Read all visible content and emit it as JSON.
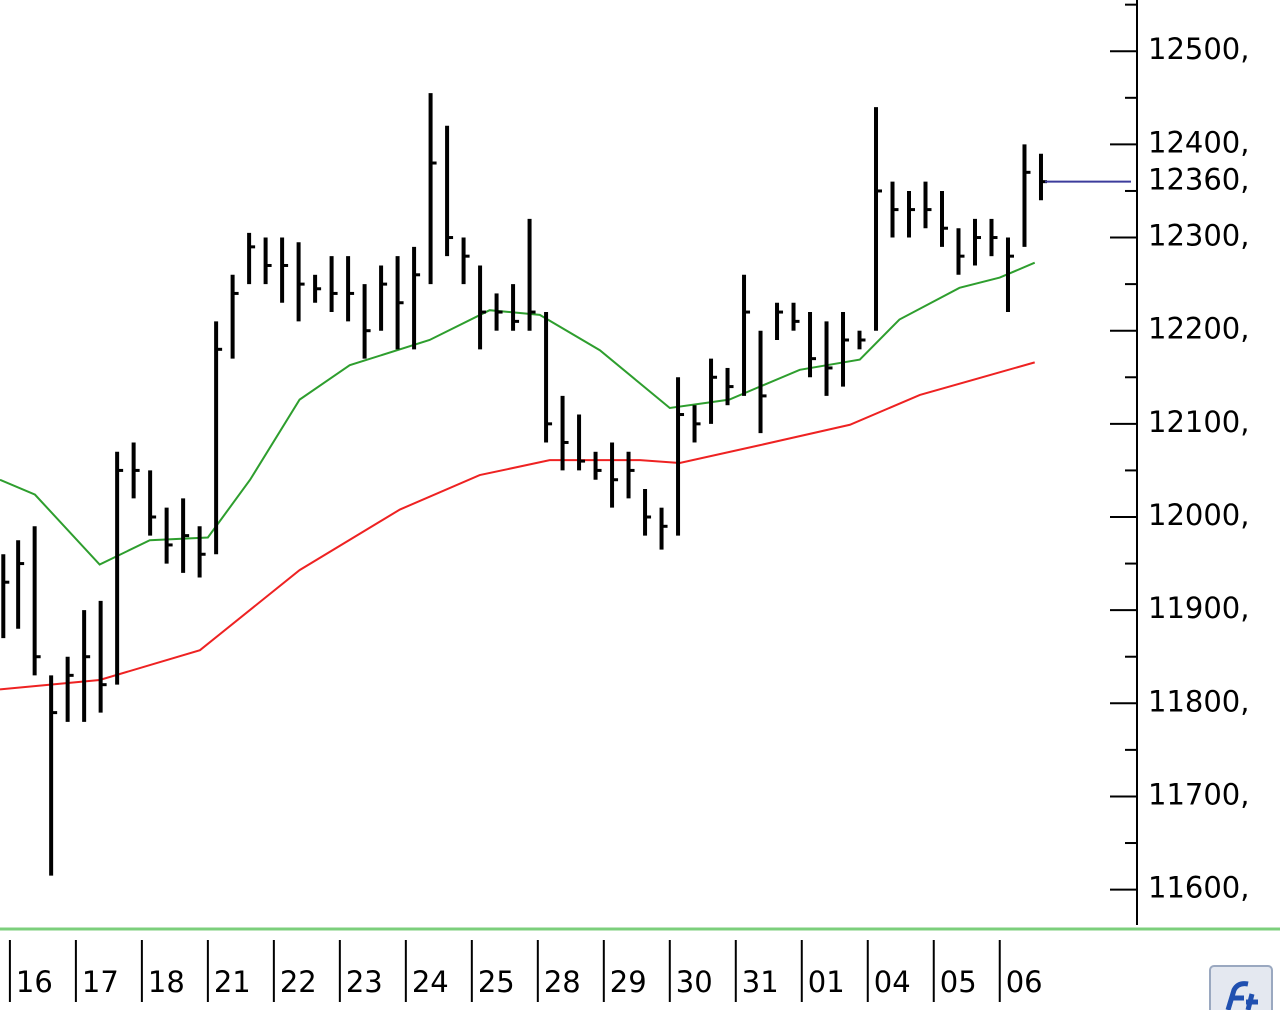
{
  "chart_data": {
    "type": "ohlc",
    "categories": [
      "16",
      "17",
      "18",
      "21",
      "22",
      "23",
      "24",
      "25",
      "28",
      "29",
      "30",
      "31",
      "01",
      "04",
      "05",
      "06"
    ],
    "xlim": [
      -0.15,
      17.08
    ],
    "ylim": [
      11562,
      12555
    ],
    "yticks": [
      {
        "value": 11600,
        "label": "11600,"
      },
      {
        "value": 11700,
        "label": "11700,"
      },
      {
        "value": 11800,
        "label": "11800,"
      },
      {
        "value": 11900,
        "label": "11900,"
      },
      {
        "value": 12000,
        "label": "12000,"
      },
      {
        "value": 12100,
        "label": "12100,"
      },
      {
        "value": 12200,
        "label": "12200,"
      },
      {
        "value": 12300,
        "label": "12300,"
      },
      {
        "value": 12400,
        "label": "12400,"
      },
      {
        "value": 12500,
        "label": "12500,"
      }
    ],
    "minor_yticks": [
      11650,
      11750,
      11850,
      11950,
      12050,
      12150,
      12250,
      12350,
      12450,
      12550
    ],
    "last_price": {
      "value": 12360,
      "label": "12360,",
      "color": "#3c3c9c"
    },
    "bar_color": "#000000",
    "bars": {
      "x": [
        -0.1,
        0.125,
        0.375,
        0.625,
        0.875,
        1.125,
        1.375,
        1.625,
        1.875,
        2.125,
        2.375,
        2.625,
        2.875,
        3.125,
        3.375,
        3.625,
        3.875,
        4.125,
        4.375,
        4.625,
        4.875,
        5.125,
        5.375,
        5.625,
        5.875,
        6.125,
        6.375,
        6.625,
        6.875,
        7.125,
        7.375,
        7.625,
        7.875,
        8.125,
        8.375,
        8.625,
        8.875,
        9.125,
        9.375,
        9.625,
        9.875,
        10.125,
        10.375,
        10.625,
        10.875,
        11.125,
        11.375,
        11.625,
        11.875,
        12.125,
        12.375,
        12.625,
        12.875,
        13.125,
        13.375,
        13.625,
        13.875,
        14.125,
        14.375,
        14.625,
        14.875,
        15.125,
        15.375,
        15.625
      ],
      "high": [
        11960,
        11975,
        11990,
        11830,
        11850,
        11900,
        11910,
        12070,
        12080,
        12050,
        12010,
        12020,
        11990,
        12210,
        12260,
        12305,
        12300,
        12300,
        12295,
        12260,
        12280,
        12280,
        12250,
        12270,
        12280,
        12290,
        12455,
        12420,
        12300,
        12270,
        12240,
        12250,
        12320,
        12220,
        12130,
        12110,
        12070,
        12080,
        12070,
        12030,
        12010,
        12150,
        12120,
        12170,
        12160,
        12260,
        12200,
        12230,
        12230,
        12220,
        12210,
        12220,
        12200,
        12440,
        12360,
        12350,
        12360,
        12350,
        12310,
        12320,
        12320,
        12300,
        12400,
        12390
      ],
      "low": [
        11870,
        11880,
        11830,
        11615,
        11780,
        11780,
        11790,
        11820,
        12020,
        11980,
        11950,
        11940,
        11935,
        11960,
        12170,
        12250,
        12250,
        12230,
        12210,
        12230,
        12220,
        12210,
        12170,
        12200,
        12180,
        12180,
        12250,
        12280,
        12250,
        12180,
        12200,
        12200,
        12200,
        12080,
        12050,
        12050,
        12040,
        12010,
        12020,
        11980,
        11965,
        11980,
        12080,
        12100,
        12120,
        12130,
        12090,
        12190,
        12200,
        12150,
        12130,
        12140,
        12180,
        12200,
        12300,
        12300,
        12310,
        12290,
        12260,
        12270,
        12280,
        12220,
        12290,
        12340
      ],
      "close": [
        11930,
        11950,
        11850,
        11790,
        11830,
        11850,
        11820,
        12050,
        12050,
        12000,
        11970,
        11980,
        11960,
        12180,
        12240,
        12290,
        12270,
        12270,
        12250,
        12245,
        12240,
        12240,
        12200,
        12250,
        12230,
        12260,
        12380,
        12300,
        12280,
        12220,
        12220,
        12210,
        12220,
        12100,
        12080,
        12060,
        12050,
        12040,
        12050,
        12000,
        11990,
        12110,
        12100,
        12150,
        12140,
        12220,
        12130,
        12220,
        12210,
        12170,
        12160,
        12190,
        12190,
        12350,
        12330,
        12330,
        12330,
        12310,
        12280,
        12300,
        12300,
        12280,
        12370,
        12360
      ]
    },
    "series": [
      {
        "color": "#2e9e2e",
        "x": [
          -0.15,
          0.38,
          1.36,
          2.12,
          3.0,
          3.64,
          4.39,
          5.15,
          6.36,
          7.27,
          8.03,
          8.94,
          10.0,
          10.9,
          11.97,
          12.88,
          13.48,
          14.39,
          15.0,
          15.53
        ],
        "values": [
          12040,
          12024,
          11949,
          11975,
          11978,
          12040,
          12126,
          12163,
          12190,
          12222,
          12217,
          12179,
          12117,
          12126,
          12158,
          12169,
          12212,
          12246,
          12257,
          12273
        ]
      },
      {
        "color": "#ee2222",
        "x": [
          -0.15,
          1.36,
          2.88,
          4.39,
          5.91,
          7.12,
          8.18,
          9.55,
          10.15,
          11.36,
          12.73,
          13.79,
          15.53
        ],
        "values": [
          11815,
          11825,
          11857,
          11943,
          12008,
          12045,
          12061,
          12061,
          12058,
          12077,
          12099,
          12131,
          12166
        ]
      }
    ]
  }
}
